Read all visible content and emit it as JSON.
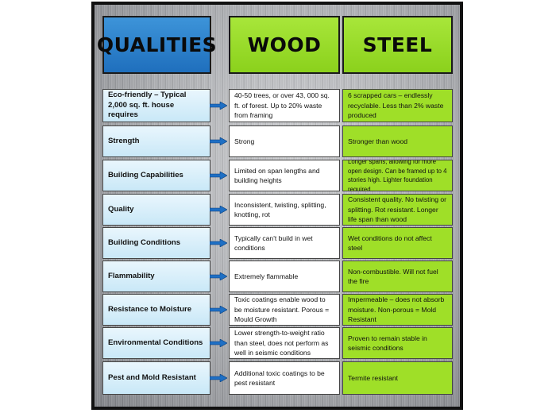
{
  "headers": {
    "qualities": "QUALITIES",
    "wood": "WOOD",
    "steel": "STEEL"
  },
  "rows": [
    {
      "quality": "Eco-friendly – Typical 2,000 sq. ft. house requires",
      "wood": "40-50 trees, or over 43, 000 sq. ft. of forest. Up to 20% waste from framing",
      "steel": "6 scrapped cars – endlessly recyclable. Less than 2% waste produced"
    },
    {
      "quality": "Strength",
      "wood": "Strong",
      "steel": "Stronger than wood"
    },
    {
      "quality": "Building Capabilities",
      "wood": "Limited on span lengths and building heights",
      "steel": "Longer spans, allowing for more open design. Can be framed up to 4 stories high. Lighter foundation required"
    },
    {
      "quality": "Quality",
      "wood": "Inconsistent, twisting, splitting, knotting, rot",
      "steel": "Consistent quality. No twisting or splitting. Rot resistant. Longer life span than wood"
    },
    {
      "quality": "Building Conditions",
      "wood": "Typically can't build in wet conditions",
      "steel": "Wet conditions do not affect steel"
    },
    {
      "quality": "Flammability",
      "wood": "Extremely flammable",
      "steel": "Non-combustible. Will not fuel the fire"
    },
    {
      "quality": "Resistance to Moisture",
      "wood": "Toxic coatings enable wood to be moisture resistant. Porous = Mould Growth",
      "steel": "Impermeable – does not absorb moisture. Non-porous = Mold Resistant"
    },
    {
      "quality": "Environmental Conditions",
      "wood": "Lower strength-to-weight ratio than steel, does not perform as well in seismic conditions",
      "steel": "Proven to remain stable in seismic conditions"
    },
    {
      "quality": "Pest and Mold Resistant",
      "wood": "Additional toxic coatings to be pest resistant",
      "steel": "Termite resistant"
    }
  ],
  "colors": {
    "qualities_header": "#2a82cc",
    "green": "#9fdf28",
    "quality_cell": "#d6eefa",
    "arrow": "#1e6fc4"
  }
}
